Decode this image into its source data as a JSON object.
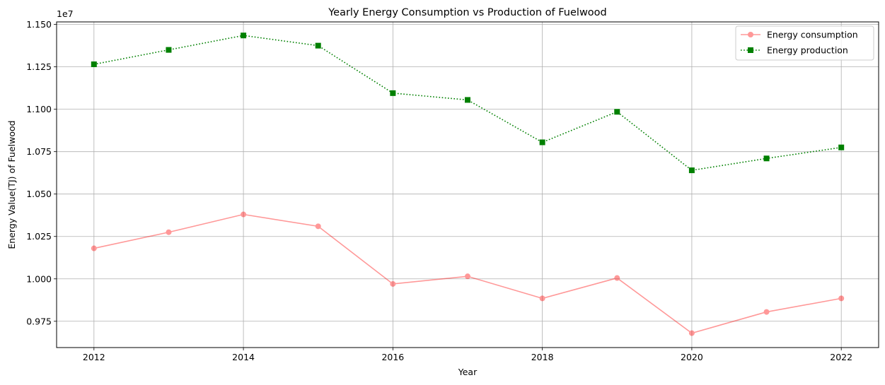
{
  "chart_data": {
    "type": "line",
    "title": "Yearly Energy Consumption vs Production of Fuelwood",
    "xlabel": "Year",
    "ylabel": "Energy Value(TJ) of Fuelwood",
    "offset_text": "1e7",
    "x": [
      2012,
      2013,
      2014,
      2015,
      2016,
      2017,
      2018,
      2019,
      2020,
      2021,
      2022
    ],
    "xlim": [
      2011.5,
      2022.5
    ],
    "ylim": [
      0.9595,
      1.1515
    ],
    "x_ticks": [
      2012,
      2014,
      2016,
      2018,
      2020,
      2022
    ],
    "x_tick_labels": [
      "2012",
      "2014",
      "2016",
      "2018",
      "2020",
      "2022"
    ],
    "y_ticks": [
      0.975,
      1.0,
      1.025,
      1.05,
      1.075,
      1.1,
      1.125,
      1.15
    ],
    "y_tick_labels": [
      "0.975",
      "1.000",
      "1.025",
      "1.050",
      "1.075",
      "1.100",
      "1.125",
      "1.150"
    ],
    "grid": true,
    "legend_position": "top-right",
    "series": [
      {
        "name": "Energy consumption",
        "color": "#ff0000",
        "opacity": 0.4,
        "line_style": "solid",
        "marker": "circle",
        "values": [
          1.018,
          1.0275,
          1.038,
          1.031,
          0.997,
          1.0015,
          0.9885,
          1.0005,
          0.968,
          0.9805,
          0.9885
        ]
      },
      {
        "name": "Energy production",
        "color": "#008000",
        "opacity": 1,
        "line_style": "dotted",
        "marker": "square",
        "values": [
          1.1265,
          1.135,
          1.1435,
          1.1375,
          1.1095,
          1.1055,
          1.0805,
          1.0985,
          1.064,
          1.071,
          1.0775
        ]
      }
    ]
  }
}
